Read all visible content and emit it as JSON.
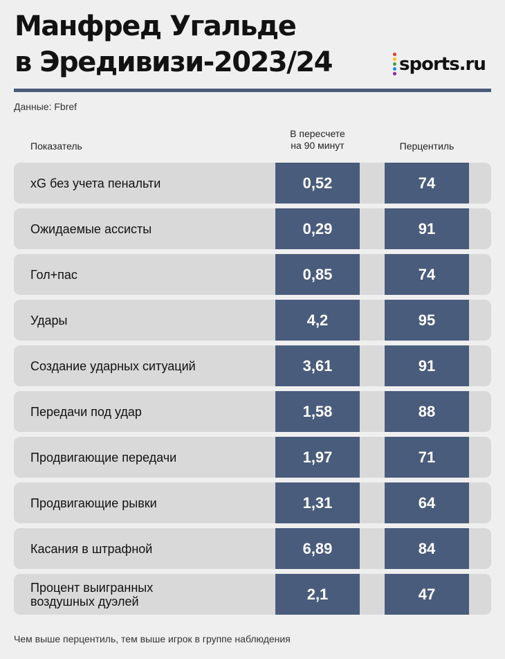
{
  "title": {
    "line1": "Манфред Угальде",
    "line2": "в Эредивизи-2023/24"
  },
  "logo": {
    "text": "sports.ru",
    "dot_colors": [
      "#e53935",
      "#fbc02d",
      "#43a047",
      "#1e88e5",
      "#8e24aa"
    ]
  },
  "source": "Данные: Fbref",
  "columns": {
    "indicator": "Показатель",
    "per90_line1": "В пересчете",
    "per90_line2": "на 90 минут",
    "percentile": "Перцентиль"
  },
  "rows": [
    {
      "label": "xG без учета пенальти",
      "value": "0,52",
      "percentile": "74"
    },
    {
      "label": "Ожидаемые ассисты",
      "value": "0,29",
      "percentile": "91"
    },
    {
      "label": "Гол+пас",
      "value": "0,85",
      "percentile": "74"
    },
    {
      "label": "Удары",
      "value": "4,2",
      "percentile": "95"
    },
    {
      "label": "Создание ударных ситуаций",
      "value": "3,61",
      "percentile": "91"
    },
    {
      "label": "Передачи под удар",
      "value": "1,58",
      "percentile": "88"
    },
    {
      "label": "Продвигающие передачи",
      "value": "1,97",
      "percentile": "71"
    },
    {
      "label": "Продвигающие рывки",
      "value": "1,31",
      "percentile": "64"
    },
    {
      "label": "Касания в штрафной",
      "value": "6,89",
      "percentile": "84"
    },
    {
      "label": "Процент выигранных воздушных дуэлей",
      "value": "2,1",
      "percentile": "47"
    }
  ],
  "footnote": "Чем выше перцентиль, тем выше игрок в группе наблюдения",
  "colors": {
    "accent": "#4a5c7c",
    "row_bg": "#d9d9d9",
    "page_bg": "#efefef"
  }
}
